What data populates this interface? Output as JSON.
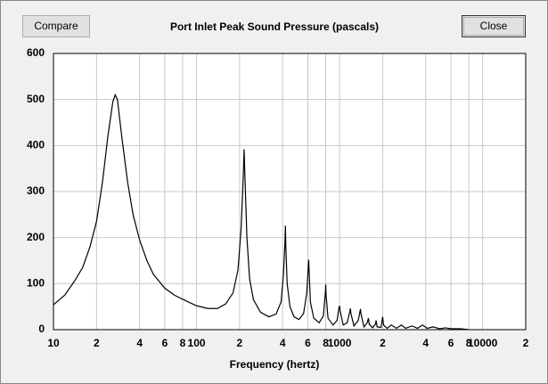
{
  "buttons": {
    "compare": "Compare",
    "close": "Close"
  },
  "chart_data": {
    "type": "line",
    "title": "Port Inlet Peak Sound Pressure (pascals)",
    "x_label": "Frequency (hertz)",
    "log_x": true,
    "grid": true,
    "color": "#000000",
    "xlim": [
      10,
      20000
    ],
    "xticks": [
      10,
      {
        "value": 20,
        "label": "2"
      },
      {
        "value": 40,
        "label": "4"
      },
      {
        "value": 60,
        "label": "6"
      },
      {
        "value": 80,
        "label": "8"
      },
      100,
      {
        "value": 200,
        "label": "2"
      },
      {
        "value": 400,
        "label": "4"
      },
      {
        "value": 600,
        "label": "6"
      },
      {
        "value": 800,
        "label": "8"
      },
      1000,
      {
        "value": 2000,
        "label": "2"
      },
      {
        "value": 4000,
        "label": "4"
      },
      {
        "value": 6000,
        "label": "6"
      },
      {
        "value": 8000,
        "label": "8"
      },
      10000,
      {
        "value": 20000,
        "label": "2"
      }
    ],
    "ylim": [
      0,
      600
    ],
    "yticks": [
      0,
      100,
      200,
      300,
      400,
      500,
      600
    ],
    "x": [
      10,
      12,
      14,
      16,
      18,
      20,
      22,
      24,
      26,
      27,
      28,
      30,
      33,
      36,
      40,
      45,
      50,
      60,
      70,
      85,
      100,
      120,
      140,
      160,
      180,
      195,
      205,
      212,
      215,
      218,
      225,
      235,
      250,
      280,
      320,
      360,
      390,
      405,
      415,
      418,
      421,
      430,
      450,
      480,
      520,
      560,
      590,
      605,
      608,
      612,
      625,
      660,
      720,
      770,
      795,
      800,
      805,
      830,
      900,
      960,
      990,
      1000,
      1010,
      1060,
      1130,
      1180,
      1190,
      1200,
      1260,
      1350,
      1400,
      1410,
      1480,
      1560,
      1590,
      1610,
      1700,
      1780,
      1800,
      1830,
      1950,
      2000,
      2030,
      2150,
      2300,
      2500,
      2700,
      2900,
      3200,
      3500,
      3800,
      4100,
      4500,
      5000,
      5500,
      6000,
      7000,
      8000
    ],
    "values": [
      54,
      75,
      105,
      135,
      180,
      235,
      320,
      420,
      495,
      510,
      500,
      420,
      320,
      250,
      195,
      150,
      120,
      90,
      75,
      62,
      52,
      46,
      46,
      56,
      80,
      130,
      220,
      330,
      392,
      330,
      200,
      110,
      65,
      38,
      28,
      34,
      60,
      120,
      190,
      226,
      180,
      100,
      50,
      28,
      22,
      35,
      80,
      140,
      152,
      130,
      60,
      25,
      15,
      30,
      80,
      98,
      75,
      25,
      10,
      20,
      48,
      52,
      40,
      10,
      15,
      40,
      46,
      35,
      8,
      20,
      45,
      35,
      6,
      15,
      25,
      12,
      4,
      12,
      20,
      6,
      5,
      28,
      10,
      3,
      10,
      3,
      10,
      3,
      8,
      3,
      10,
      3,
      6,
      2,
      4,
      2,
      2,
      0
    ]
  }
}
